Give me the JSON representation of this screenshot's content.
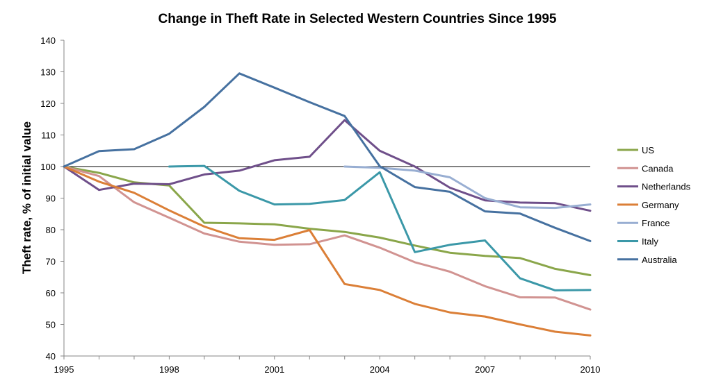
{
  "chart_data": {
    "type": "line",
    "title": "Change in Theft Rate in Selected Western Countries Since 1995",
    "xlabel": "",
    "ylabel": "Theft rate, % of initial value",
    "xlim": [
      1995,
      2010
    ],
    "ylim": [
      40,
      140
    ],
    "xticks": [
      1995,
      1998,
      2001,
      2004,
      2007,
      2010
    ],
    "yticks": [
      40,
      50,
      60,
      70,
      80,
      90,
      100,
      110,
      120,
      130,
      140
    ],
    "reference_line": 100,
    "legend_position": "right",
    "series": [
      {
        "name": "US",
        "color": "#8aa64a",
        "x": [
          1995,
          1996,
          1997,
          1998,
          1999,
          2000,
          2001,
          2002,
          2003,
          2004,
          2005,
          2006,
          2007,
          2008,
          2009,
          2010
        ],
        "values": [
          100,
          98,
          95,
          94,
          82.2,
          82,
          81.7,
          80.3,
          79.3,
          77.5,
          75,
          72.7,
          71.7,
          71,
          67.6,
          65.6
        ]
      },
      {
        "name": "Canada",
        "color": "#d19391",
        "x": [
          1995,
          1996,
          1997,
          1998,
          1999,
          2000,
          2001,
          2002,
          2003,
          2004,
          2005,
          2006,
          2007,
          2008,
          2009,
          2010
        ],
        "values": [
          100,
          97,
          88.7,
          83.8,
          78.8,
          76.2,
          75.2,
          75.4,
          78.2,
          74.3,
          69.7,
          66.7,
          62.1,
          58.6,
          58.5,
          54.7
        ]
      },
      {
        "name": "Netherlands",
        "color": "#6f4f8a",
        "x": [
          1995,
          1996,
          1997,
          1998,
          1999,
          2000,
          2001,
          2002,
          2003,
          2004,
          2005,
          2006,
          2007,
          2008,
          2009,
          2010
        ],
        "values": [
          100,
          92.6,
          94.6,
          94.4,
          97.5,
          98.7,
          102,
          103.1,
          114.7,
          105,
          100,
          93.3,
          89.3,
          88.6,
          88.4,
          86
        ]
      },
      {
        "name": "Germany",
        "color": "#db7f37",
        "x": [
          1995,
          1996,
          1997,
          1998,
          1999,
          2000,
          2001,
          2002,
          2003,
          2004,
          2005,
          2006,
          2007,
          2008,
          2009,
          2010
        ],
        "values": [
          100,
          95.2,
          91.7,
          86.1,
          81,
          77.3,
          76.8,
          79.9,
          62.8,
          60.9,
          56.5,
          53.8,
          52.5,
          50,
          47.7,
          46.5
        ]
      },
      {
        "name": "France",
        "color": "#98aed2",
        "x": [
          2003,
          2004,
          2005,
          2006,
          2007,
          2008,
          2009,
          2010
        ],
        "values": [
          100,
          99.6,
          98.7,
          96.6,
          90,
          87.1,
          86.9,
          88
        ]
      },
      {
        "name": "Italy",
        "color": "#3b98a8",
        "x": [
          1998,
          1999,
          2000,
          2001,
          2002,
          2003,
          2004,
          2005,
          2006,
          2007,
          2008,
          2009,
          2010
        ],
        "values": [
          100,
          100.2,
          92.3,
          88,
          88.2,
          89.4,
          98.2,
          72.9,
          75.2,
          76.6,
          64.6,
          60.8,
          60.9
        ]
      },
      {
        "name": "Australia",
        "color": "#4671a0",
        "x": [
          1995,
          1996,
          1997,
          1998,
          1999,
          2000,
          2001,
          2002,
          2003,
          2004,
          2005,
          2006,
          2007,
          2008,
          2009,
          2010
        ],
        "values": [
          100,
          104.9,
          105.5,
          110.4,
          118.9,
          129.5,
          125,
          120.4,
          116,
          100.1,
          93.5,
          92,
          85.8,
          85.1,
          80.6,
          76.4
        ]
      }
    ]
  }
}
